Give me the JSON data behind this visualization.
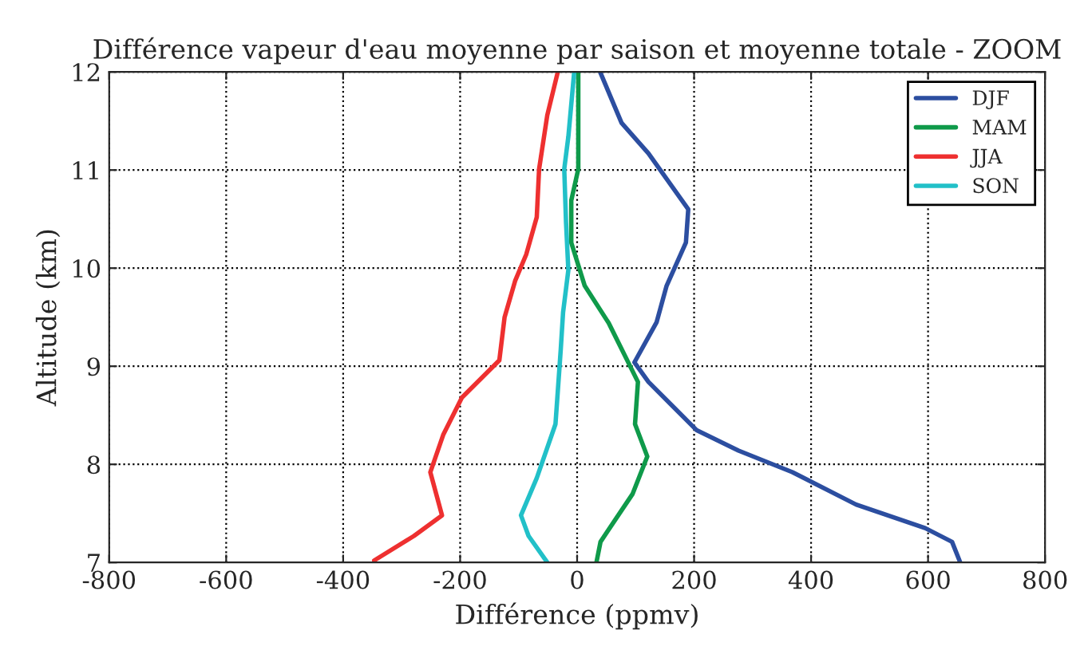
{
  "chart_data": {
    "type": "line",
    "title": "Différence vapeur d'eau moyenne par saison et moyenne totale - ZOOM",
    "xlabel": "Différence (ppmv)",
    "ylabel": "Altitude (km)",
    "xlim": [
      -800,
      800
    ],
    "xticks": [
      -800,
      -600,
      -400,
      -200,
      0,
      200,
      400,
      600,
      800
    ],
    "ylim": [
      7,
      12
    ],
    "yticks": [
      7,
      8,
      9,
      10,
      11,
      12
    ],
    "grid": true,
    "legend": "top right",
    "line_style": "solid",
    "series": [
      {
        "name": "DJF",
        "color": "#2c4ea0",
        "x": [
          40,
          76,
          122,
          190,
          186,
          153,
          136,
          98,
          122,
          204,
          276,
          368,
          477,
          595,
          641,
          655
        ],
        "values": [
          11.99,
          11.48,
          11.17,
          10.6,
          10.26,
          9.82,
          9.45,
          9.04,
          8.84,
          8.35,
          8.14,
          7.92,
          7.59,
          7.35,
          7.21,
          7.0
        ]
      },
      {
        "name": "MAM",
        "color": "#0f9a4a",
        "x": [
          2,
          2,
          -10,
          -10,
          13,
          54,
          104,
          99,
          120,
          95,
          40,
          33
        ],
        "values": [
          12.0,
          11.01,
          10.69,
          10.26,
          9.82,
          9.44,
          8.84,
          8.41,
          8.08,
          7.7,
          7.21,
          7.0
        ]
      },
      {
        "name": "JJA",
        "color": "#ee3030",
        "x": [
          -33,
          -51,
          -65,
          -69,
          -87,
          -106,
          -124,
          -133,
          -197,
          -229,
          -251,
          -231,
          -279,
          -347
        ],
        "values": [
          12.0,
          11.56,
          11.01,
          10.52,
          10.14,
          9.87,
          9.5,
          9.06,
          8.68,
          8.3,
          7.92,
          7.48,
          7.27,
          7.02
        ]
      },
      {
        "name": "SON",
        "color": "#22c0c8",
        "x": [
          -5,
          -15,
          -22,
          -19,
          -15,
          -24,
          -28,
          -37,
          -69,
          -96,
          -83,
          -51
        ],
        "values": [
          12.0,
          11.34,
          11.01,
          10.47,
          9.98,
          9.55,
          9.17,
          8.41,
          7.86,
          7.48,
          7.27,
          7.0
        ]
      }
    ]
  }
}
